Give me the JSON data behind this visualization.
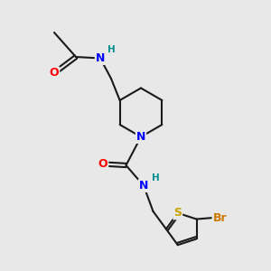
{
  "background_color": "#e8e8e8",
  "bond_color": "#1a1a1a",
  "bond_width": 1.5,
  "atom_colors": {
    "O": "#ff0000",
    "N": "#0000ff",
    "H": "#009090",
    "S": "#c8a000",
    "Br": "#cc7700",
    "C": "#1a1a1a"
  },
  "font_size_atoms": 9,
  "font_size_H": 7.5
}
